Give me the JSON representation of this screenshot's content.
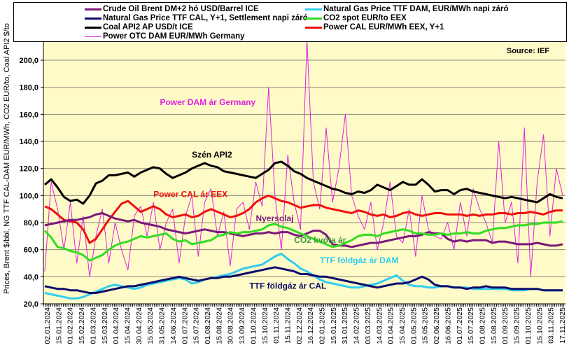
{
  "chart_data": {
    "type": "line",
    "title": "",
    "source": "Source:  IEF",
    "ylabel": "Prices, Brent $/bbl, NG TTF CAL-DAM EUR/MWh, CO2 EUR/to, Coal API2 $/to",
    "xlabel": "",
    "ylim": [
      20,
      214
    ],
    "yticks": [
      20,
      40,
      60,
      80,
      100,
      120,
      140,
      160,
      180,
      200
    ],
    "ytick_labels": [
      "20,0",
      "40,0",
      "60,0",
      "80,0",
      "100,0",
      "120,0",
      "140,0",
      "160,0",
      "180,0",
      "200,0"
    ],
    "grid": true,
    "legend_position": "top",
    "x_tick_labels": [
      "02.01.2024",
      "15.01.2024",
      "01.02.2024",
      "15.02.2024",
      "01.03.2024",
      "15.03.2024",
      "01.04.2024",
      "15.04.2024",
      "30.04.2024",
      "15.05.2024",
      "31.05.2024",
      "14.06.2024",
      "01.07.2024",
      "15.07.2024",
      "01.08.2024",
      "15.08.2024",
      "30.08.2024",
      "13.09.2024",
      "01.10.2024",
      "15.10.2024",
      "01.11.2024",
      "15.11.2024",
      "02.12.2024",
      "16.12.2024",
      "02.01.2025",
      "15.01.2025",
      "31.01.2025",
      "14.02.2025",
      "03.03.2025",
      "14.03.2025",
      "01.04.2025",
      "15.04.2025",
      "01.05.2025",
      "15.05.2025",
      "02.06.2025",
      "16.06.2025",
      "01.07.2025",
      "15.07.2025",
      "01.08.2025",
      "15.08.2025",
      "01.09.2025",
      "15.09.2025",
      "01.10.2025",
      "15.10.2025",
      "03.11.2025",
      "17.11.2025"
    ],
    "series": [
      {
        "name": "Crude Oil Brent DM+2 hó USD/Barrel ICE",
        "color": "#7b1a7b",
        "width": 3,
        "values": [
          78,
          79,
          80,
          81,
          82,
          82,
          83,
          84,
          86,
          87,
          85,
          83,
          82,
          81,
          82,
          80,
          79,
          78,
          77,
          75,
          74,
          73,
          72,
          73,
          74,
          75,
          74,
          73,
          73,
          72,
          71,
          70,
          71,
          72,
          72,
          73,
          72,
          73,
          73,
          71,
          70,
          72,
          74,
          74,
          71,
          64,
          63,
          63,
          62,
          63,
          64,
          65,
          65,
          66,
          67,
          68,
          69,
          70,
          70,
          71,
          73,
          72,
          72,
          68,
          66,
          67,
          66,
          67,
          67,
          67,
          65,
          66,
          66,
          65,
          64,
          64,
          64,
          65,
          64,
          63,
          63,
          64
        ]
      },
      {
        "name": "Natural Gas Price TTF CAL, Y+1, Settlement napi záró",
        "color": "#0d0d6b",
        "width": 3,
        "values": [
          33,
          32,
          31,
          31,
          30,
          30,
          29,
          28,
          28,
          29,
          30,
          31,
          32,
          33,
          33,
          34,
          35,
          36,
          37,
          38,
          39,
          40,
          39,
          38,
          37,
          38,
          39,
          39,
          40,
          40,
          41,
          42,
          43,
          44,
          45,
          46,
          47,
          46,
          45,
          44,
          42,
          42,
          41,
          40,
          40,
          39,
          38,
          37,
          36,
          35,
          34,
          33,
          32,
          33,
          34,
          35,
          35,
          36,
          38,
          40,
          38,
          34,
          33,
          33,
          32,
          32,
          31,
          32,
          32,
          33,
          32,
          32,
          32,
          31,
          31,
          31,
          31,
          31,
          30,
          30,
          30,
          30
        ]
      },
      {
        "name": "Coal API2 AP USD/t ICE",
        "color": "#000000",
        "width": 3,
        "values": [
          108,
          112,
          106,
          99,
          96,
          97,
          94,
          100,
          109,
          111,
          115,
          115,
          116,
          117,
          114,
          117,
          119,
          121,
          120,
          116,
          113,
          115,
          117,
          120,
          122,
          124,
          122,
          121,
          118,
          117,
          116,
          115,
          114,
          113,
          116,
          119,
          124,
          125,
          122,
          118,
          116,
          113,
          111,
          109,
          107,
          105,
          104,
          102,
          101,
          103,
          102,
          104,
          108,
          106,
          104,
          107,
          110,
          108,
          108,
          112,
          108,
          103,
          104,
          104,
          101,
          104,
          105,
          103,
          102,
          101,
          100,
          99,
          98,
          99,
          98,
          97,
          96,
          95,
          98,
          101,
          99,
          98
        ]
      },
      {
        "name": "Power OTC DAM EUR/MWh Germany",
        "color": "#e020e0",
        "width": 1,
        "values": [
          44,
          110,
          90,
          60,
          95,
          50,
          85,
          40,
          70,
          90,
          50,
          80,
          60,
          45,
          85,
          92,
          70,
          95,
          60,
          80,
          90,
          50,
          85,
          100,
          55,
          95,
          105,
          70,
          88,
          48,
          90,
          95,
          75,
          110,
          92,
          180,
          100,
          60,
          130,
          95,
          75,
          215,
          110,
          90,
          150,
          95,
          120,
          160,
          100,
          85,
          75,
          95,
          60,
          80,
          110,
          70,
          65,
          90,
          55,
          100,
          75,
          70,
          68,
          80,
          60,
          95,
          70,
          105,
          90,
          80,
          65,
          140,
          80,
          95,
          50,
          150,
          40,
          110,
          145,
          70,
          120,
          100
        ]
      },
      {
        "name": "Natural Gas Price TTF DAM, EUR/MWh napi záró",
        "color": "#33ccee",
        "width": 3,
        "values": [
          28,
          27,
          26,
          25,
          24,
          24,
          25,
          27,
          29,
          31,
          33,
          34,
          33,
          32,
          31,
          32,
          34,
          35,
          36,
          37,
          38,
          39,
          38,
          35,
          36,
          38,
          39,
          40,
          41,
          42,
          44,
          46,
          47,
          48,
          49,
          52,
          55,
          57,
          53,
          50,
          46,
          44,
          41,
          38,
          36,
          35,
          34,
          33,
          32,
          32,
          33,
          34,
          35,
          37,
          39,
          41,
          37,
          34,
          33,
          33,
          32,
          32,
          33,
          33,
          32,
          32,
          32,
          31,
          31,
          31,
          31,
          31,
          31,
          30,
          30,
          30,
          31,
          31,
          30,
          30,
          30,
          30
        ]
      },
      {
        "name": "CO2 spot EUR/to EEX",
        "color": "#33dd22",
        "width": 3,
        "values": [
          74,
          69,
          62,
          61,
          59,
          58,
          56,
          52,
          54,
          56,
          60,
          63,
          65,
          66,
          68,
          70,
          69,
          70,
          71,
          72,
          68,
          66,
          67,
          64,
          65,
          66,
          67,
          70,
          71,
          73,
          72,
          73,
          73,
          74,
          75,
          78,
          79,
          77,
          76,
          74,
          72,
          70,
          68,
          66,
          64,
          62,
          63,
          65,
          67,
          70,
          71,
          71,
          70,
          72,
          73,
          74,
          75,
          74,
          72,
          72,
          71,
          71,
          72,
          71,
          72,
          72,
          73,
          72,
          72,
          74,
          75,
          76,
          76,
          77,
          78,
          78,
          79,
          79,
          80,
          80,
          80,
          81
        ]
      },
      {
        "name": "Power CAL EUR/MWh EEX, Y+1",
        "color": "#ee1111",
        "width": 3,
        "values": [
          92,
          90,
          86,
          82,
          81,
          80,
          75,
          65,
          68,
          75,
          82,
          88,
          94,
          96,
          92,
          88,
          90,
          92,
          90,
          86,
          84,
          85,
          86,
          84,
          85,
          88,
          90,
          88,
          86,
          84,
          85,
          87,
          90,
          95,
          98,
          100,
          98,
          96,
          95,
          93,
          91,
          92,
          93,
          93,
          91,
          90,
          89,
          88,
          87,
          89,
          88,
          86,
          85,
          86,
          84,
          85,
          87,
          88,
          86,
          85,
          86,
          87,
          87,
          86,
          86,
          86,
          85,
          86,
          85,
          86,
          86,
          87,
          87,
          86,
          87,
          87,
          88,
          87,
          86,
          88,
          89,
          89
        ]
      }
    ]
  },
  "legend": {
    "left": [
      {
        "label": "Crude Oil Brent DM+2 hó USD/Barrel ICE",
        "color": "#7b1a7b"
      },
      {
        "label": "Natural Gas Price TTF CAL, Y+1, Settlement napi záró",
        "color": "#0d0d6b"
      },
      {
        "label": "Coal API2 AP USD/t ICE",
        "color": "#000000"
      },
      {
        "label": "Power OTC DAM EUR/MWh Germany",
        "color": "#e020e0"
      }
    ],
    "right": [
      {
        "label": "Natural Gas Price TTF DAM, EUR/MWh napi záró",
        "color": "#33ccee"
      },
      {
        "label": "CO2 spot EUR/to EEX",
        "color": "#33dd22"
      },
      {
        "label": "Power CAL EUR/MWh EEX, Y+1",
        "color": "#ee1111"
      }
    ]
  },
  "annotations": [
    {
      "text": "Power DAM  ár Germany",
      "color": "#e020e0",
      "x_index": 18,
      "value": 167
    },
    {
      "text": "Szén API2",
      "color": "#000000",
      "x_index": 23,
      "value": 128
    },
    {
      "text": "Power CAL ár EEX",
      "color": "#ee1111",
      "x_index": 17,
      "value": 99
    },
    {
      "text": "Nyersolaj",
      "color": "#7b1a7b",
      "x_index": 33,
      "value": 81
    },
    {
      "text": "CO2 kvóta ár",
      "color": "#3a9a3a",
      "x_index": 39,
      "value": 65
    },
    {
      "text": "TTF földgáz ár DAM",
      "color": "#33ccee",
      "x_index": 43,
      "value": 50
    },
    {
      "text": "TTF földgáz ár CAL",
      "color": "#0d0d6b",
      "x_index": 32,
      "value": 31
    }
  ],
  "colors": {
    "plot_bg": "#fffbc8",
    "grid": "#8a8a78"
  }
}
